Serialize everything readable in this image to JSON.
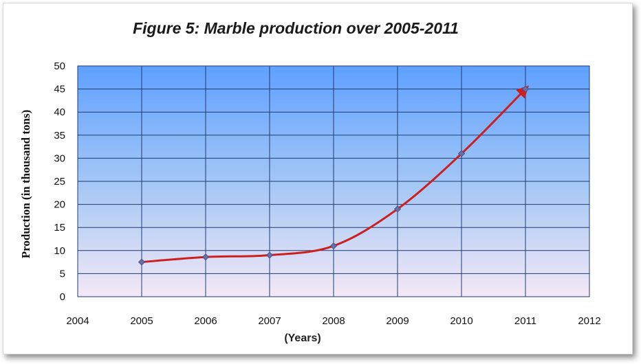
{
  "chart_data": {
    "type": "line",
    "title": "Figure 5: Marble production over 2005-2011",
    "xlabel": "(Years)",
    "ylabel": "Production (in thousand tons)",
    "x": [
      2005,
      2006,
      2007,
      2008,
      2009,
      2010,
      2011
    ],
    "series": [
      {
        "values": [
          7.5,
          8.6,
          9,
          11,
          19,
          31,
          45
        ]
      }
    ],
    "xlim": [
      2004,
      2012
    ],
    "ylim": [
      0,
      50
    ],
    "xticks": [
      2004,
      2005,
      2006,
      2007,
      2008,
      2009,
      2010,
      2011,
      2012
    ],
    "yticks": [
      0,
      5,
      10,
      15,
      20,
      25,
      30,
      35,
      40,
      45,
      50
    ],
    "grid": true,
    "legend": "none",
    "colors": {
      "line": "#cc1f1f",
      "marker": "#6b6fa8",
      "grid": "#1f3a6e",
      "plot_top": "#5fa0ff",
      "plot_bottom": "#f4e8f6"
    }
  }
}
